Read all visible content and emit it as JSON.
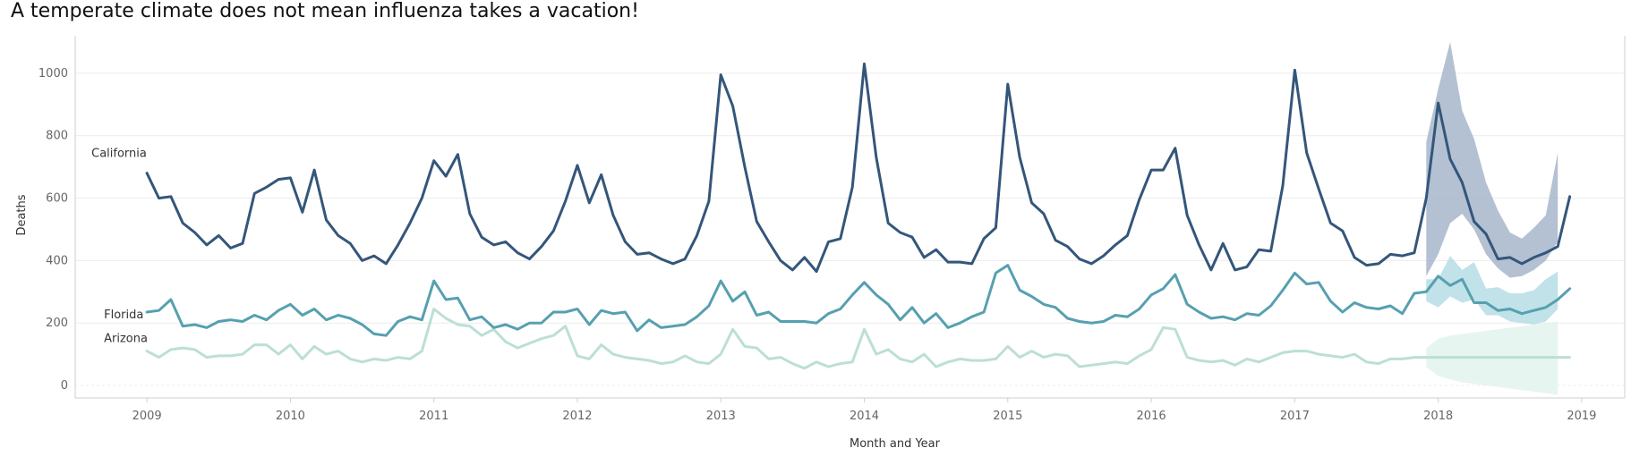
{
  "chart_data": {
    "type": "line",
    "title": "A temperate climate does not mean influenza takes a vacation!",
    "xlabel": "Month and Year",
    "ylabel": "Deaths",
    "ylim": [
      -40,
      1120
    ],
    "xlim": [
      2008.5,
      2019.3
    ],
    "y_ticks": [
      0,
      200,
      400,
      600,
      800,
      1000
    ],
    "x_ticks": [
      "2009",
      "2010",
      "2011",
      "2012",
      "2013",
      "2014",
      "2015",
      "2016",
      "2017",
      "2018",
      "2019"
    ],
    "x_start": 2009.0,
    "x_step": 0.08333333333,
    "grid": true,
    "legend": "inline labels at line starts",
    "colors": {
      "California": "#34567a",
      "Florida": "#56a0b0",
      "Arizona": "#bcdfd5",
      "California_band": "#a7b6ca",
      "Florida_band": "#b5dde4",
      "Arizona_band": "#e3f3ee",
      "grid": "#ececec",
      "axis": "#cfcfcf"
    },
    "series": [
      {
        "name": "California",
        "label": "California",
        "values": [
          680,
          600,
          605,
          520,
          490,
          450,
          480,
          440,
          455,
          615,
          635,
          660,
          665,
          555,
          690,
          530,
          480,
          455,
          400,
          415,
          390,
          450,
          520,
          600,
          720,
          670,
          740,
          550,
          475,
          450,
          460,
          425,
          405,
          445,
          495,
          590,
          705,
          585,
          675,
          545,
          460,
          420,
          425,
          405,
          390,
          405,
          480,
          590,
          995,
          895,
          700,
          525,
          460,
          400,
          370,
          410,
          365,
          460,
          470,
          635,
          1030,
          730,
          520,
          490,
          475,
          410,
          435,
          395,
          395,
          390,
          470,
          505,
          965,
          730,
          585,
          550,
          465,
          445,
          405,
          390,
          415,
          450,
          480,
          595,
          690,
          690,
          760,
          545,
          450,
          370,
          455,
          370,
          380,
          435,
          430,
          640,
          1010,
          745,
          630,
          520,
          495,
          410,
          385,
          390,
          420,
          415,
          425,
          600,
          905,
          725,
          650,
          525,
          485,
          405,
          410,
          390,
          410,
          425,
          445,
          605
        ],
        "forecast_start": 107,
        "band_lower": [
          350,
          420,
          520,
          550,
          500,
          420,
          375,
          345,
          350,
          370,
          400,
          460
        ],
        "band_upper": [
          780,
          950,
          1100,
          880,
          790,
          650,
          560,
          490,
          470,
          505,
          545,
          745
        ]
      },
      {
        "name": "Florida",
        "label": "Florida",
        "values": [
          235,
          240,
          275,
          190,
          195,
          185,
          205,
          210,
          205,
          225,
          210,
          240,
          260,
          225,
          245,
          210,
          225,
          215,
          195,
          165,
          160,
          205,
          220,
          210,
          335,
          275,
          280,
          210,
          220,
          185,
          195,
          180,
          200,
          200,
          235,
          235,
          245,
          195,
          240,
          230,
          235,
          175,
          210,
          185,
          190,
          195,
          220,
          255,
          335,
          270,
          300,
          225,
          235,
          205,
          205,
          205,
          200,
          230,
          245,
          290,
          330,
          290,
          260,
          210,
          250,
          200,
          230,
          185,
          200,
          220,
          235,
          360,
          385,
          305,
          285,
          260,
          250,
          215,
          205,
          200,
          205,
          225,
          220,
          245,
          290,
          310,
          355,
          260,
          235,
          215,
          220,
          210,
          230,
          225,
          255,
          305,
          360,
          325,
          330,
          270,
          235,
          265,
          250,
          245,
          255,
          230,
          295,
          300,
          350,
          320,
          340,
          265,
          265,
          240,
          245,
          230,
          240,
          250,
          275,
          310
        ],
        "forecast_start": 107,
        "band_lower": [
          270,
          250,
          285,
          265,
          275,
          225,
          225,
          205,
          200,
          195,
          205,
          245
        ],
        "band_upper": [
          340,
          340,
          415,
          370,
          395,
          310,
          315,
          295,
          295,
          305,
          340,
          365
        ]
      },
      {
        "name": "Arizona",
        "label": "Arizona",
        "values": [
          110,
          90,
          115,
          120,
          115,
          90,
          95,
          95,
          100,
          130,
          130,
          100,
          130,
          85,
          125,
          100,
          110,
          85,
          75,
          85,
          80,
          90,
          85,
          110,
          245,
          215,
          195,
          190,
          160,
          180,
          140,
          120,
          135,
          150,
          160,
          190,
          95,
          85,
          130,
          100,
          90,
          85,
          80,
          70,
          75,
          95,
          75,
          70,
          100,
          180,
          125,
          120,
          85,
          90,
          70,
          55,
          75,
          60,
          70,
          75,
          180,
          100,
          115,
          85,
          75,
          100,
          60,
          75,
          85,
          80,
          80,
          85,
          125,
          90,
          110,
          90,
          100,
          95,
          60,
          65,
          70,
          75,
          70,
          95,
          115,
          185,
          180,
          90,
          80,
          75,
          80,
          65,
          85,
          75,
          90,
          105,
          110,
          110,
          100,
          95,
          90,
          100,
          75,
          70,
          85,
          85,
          90,
          90,
          90,
          90,
          90,
          90,
          90,
          90,
          90,
          90,
          90,
          90,
          90,
          90
        ],
        "forecast_start": 107,
        "band_lower": [
          60,
          30,
          20,
          10,
          5,
          0,
          -5,
          -10,
          -15,
          -20,
          -25,
          -30
        ],
        "band_upper": [
          120,
          150,
          160,
          165,
          170,
          175,
          180,
          185,
          190,
          195,
          200,
          205
        ]
      }
    ]
  }
}
